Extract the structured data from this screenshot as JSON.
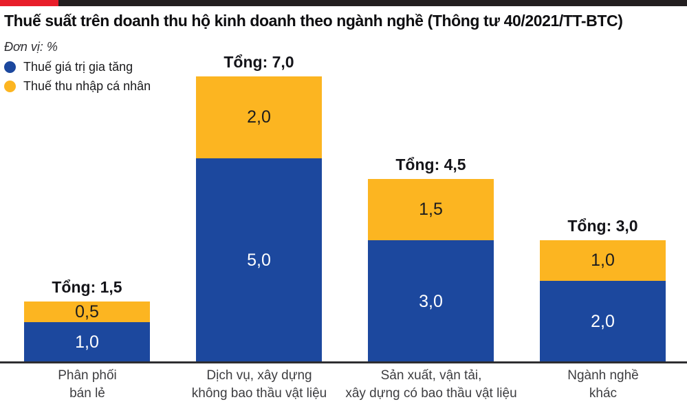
{
  "page": {
    "title": "Thuế suất trên doanh thu hộ kinh doanh theo ngành nghề (Thông tư 40/2021/TT-BTC)",
    "unit_label": "Đơn vị: %"
  },
  "colors": {
    "vat_blue": "#1c489e",
    "pit_yellow": "#fcb521",
    "accent_red": "#e81e2a",
    "top_bar_black": "#231f20"
  },
  "legend": {
    "items": [
      {
        "icon": "blue-dot",
        "label": "Thuế giá trị gia tăng",
        "color": "#1c489e"
      },
      {
        "icon": "yellow-dot",
        "label": "Thuế thu nhập cá nhân",
        "color": "#fcb521"
      }
    ]
  },
  "chart_data": {
    "type": "bar",
    "stacked": true,
    "unit": "%",
    "ylim": [
      0,
      7.5
    ],
    "grid": false,
    "legend_position": "top-left",
    "title": "Thuế suất trên doanh thu hộ kinh doanh theo ngành nghề (Thông tư 40/2021/TT-BTC)",
    "categories": [
      "Phân phối\nbán lẻ",
      "Dịch vụ, xây dựng\nkhông bao thầu vật liệu",
      "Sản xuất, vận tải,\nxây dựng có bao thầu vật liệu",
      "Ngành nghề\nkhác"
    ],
    "series": [
      {
        "name": "Thuế giá trị gia tăng",
        "color": "#1c489e",
        "values": [
          1.0,
          5.0,
          3.0,
          2.0
        ]
      },
      {
        "name": "Thuế thu nhập cá nhân",
        "color": "#fcb521",
        "values": [
          0.5,
          2.0,
          1.5,
          1.0
        ]
      }
    ],
    "bars": [
      {
        "category": "Phân phối\nbán lẻ",
        "vat": 1.0,
        "pit": 0.5,
        "total": 1.5,
        "vat_label": "1,0",
        "pit_label": "0,5",
        "total_label": "Tổng: 1,5"
      },
      {
        "category": "Dịch vụ, xây dựng\nkhông bao thầu vật liệu",
        "vat": 5.0,
        "pit": 2.0,
        "total": 7.0,
        "vat_label": "5,0",
        "pit_label": "2,0",
        "total_label": "Tổng: 7,0"
      },
      {
        "category": "Sản xuất, vận tải,\nxây dựng có bao thầu vật liệu",
        "vat": 3.0,
        "pit": 1.5,
        "total": 4.5,
        "vat_label": "3,0",
        "pit_label": "1,5",
        "total_label": "Tổng: 4,5"
      },
      {
        "category": "Ngành nghề\nkhác",
        "vat": 2.0,
        "pit": 1.0,
        "total": 3.0,
        "vat_label": "2,0",
        "pit_label": "1,0",
        "total_label": "Tổng: 3,0"
      }
    ]
  }
}
